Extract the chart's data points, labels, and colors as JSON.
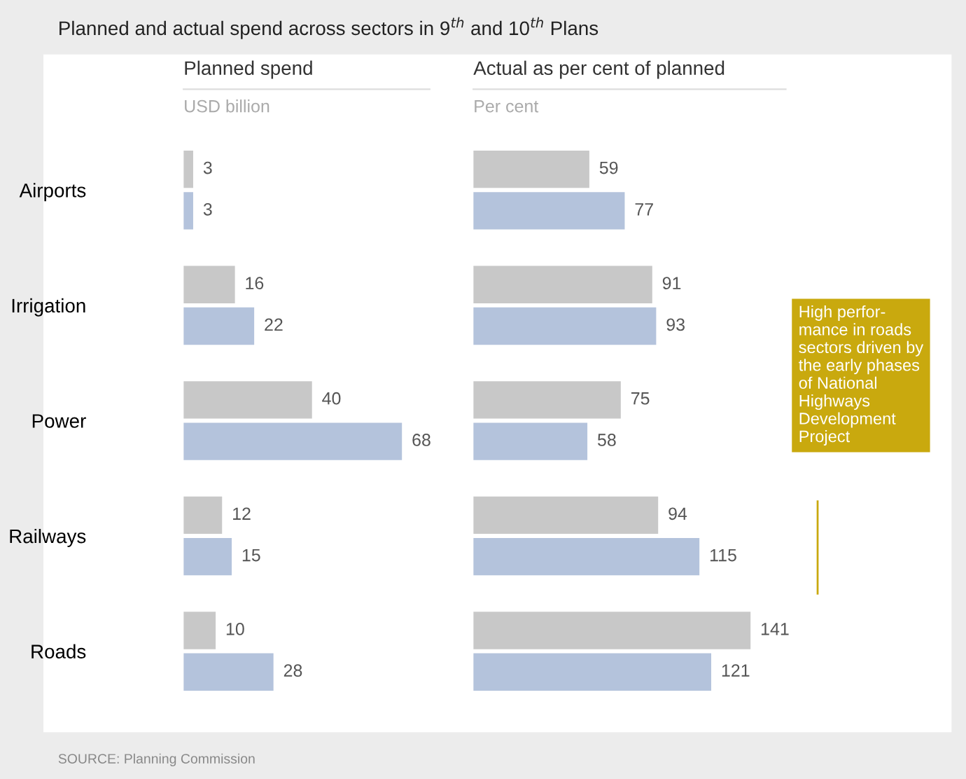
{
  "chart_data": [
    {
      "type": "bar",
      "orientation": "horizontal",
      "title": "Planned and actual spend across sectors in 9$^{th}$ and 10$^{th}$ Plans",
      "xlabel": "Planned spend",
      "subtitle": "USD billion",
      "categories": [
        "Airports",
        "Irrigation",
        "Power",
        "Railways",
        "Roads"
      ],
      "series": [
        {
          "color": "#c8c8c8",
          "values": [
            3,
            16,
            40,
            12,
            10
          ]
        },
        {
          "color": "#b4c3dc",
          "values": [
            3,
            22,
            68,
            15,
            28
          ]
        }
      ],
      "data_labels": true,
      "tick_labels": "y",
      "grid": false,
      "legend": false,
      "annotations": [
        "SOURCE: Planning Commission"
      ]
    },
    {
      "type": "bar",
      "orientation": "horizontal",
      "xlabel": "Actual as per cent of planned",
      "subtitle": "Per cent",
      "categories": [
        null,
        null,
        null,
        null,
        null
      ],
      "series": [
        {
          "color": "#c8c8c8",
          "values": [
            59,
            91,
            75,
            94,
            141
          ]
        },
        {
          "color": "#b4c3dc",
          "values": [
            77,
            93,
            58,
            115,
            121
          ]
        }
      ],
      "data_labels": true,
      "tick_labels": false,
      "grid": false,
      "legend": false,
      "annotations": [
        "High perfor-\nmance in roads\nsectors driven by\nthe early phases\nof National\nHighways\nDevelopment\nProject"
      ]
    }
  ]
}
